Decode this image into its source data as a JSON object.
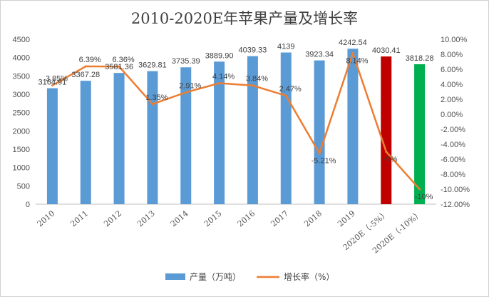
{
  "chart_data": {
    "type": "bar",
    "title": "2010-2020E年苹果产量及增长率",
    "categories": [
      "2010",
      "2011",
      "2012",
      "2013",
      "2014",
      "2015",
      "2016",
      "2017",
      "2018",
      "2019",
      "2020E（-5%）",
      "2020E（-10%）"
    ],
    "series": [
      {
        "name": "产量（万吨）",
        "type": "bar",
        "axis": "left",
        "values": [
          3164.91,
          3367.28,
          3581.36,
          3629.81,
          3735.39,
          3889.9,
          4039.33,
          4139,
          3923.34,
          4242.54,
          4030.41,
          3818.28
        ],
        "labels": [
          "3164.91",
          "3367.28",
          "3581.36",
          "3629.81",
          "3735.39",
          "3889.90",
          "4039.33",
          "4139",
          "3923.34",
          "4242.54",
          "4030.41",
          "3818.28"
        ],
        "colors": [
          "#5b9bd5",
          "#5b9bd5",
          "#5b9bd5",
          "#5b9bd5",
          "#5b9bd5",
          "#5b9bd5",
          "#5b9bd5",
          "#5b9bd5",
          "#5b9bd5",
          "#5b9bd5",
          "#c00000",
          "#00b050"
        ]
      },
      {
        "name": "增长率（%）",
        "type": "line",
        "axis": "right",
        "values": [
          3.85,
          6.39,
          6.36,
          1.35,
          2.91,
          4.14,
          3.84,
          2.47,
          -5.21,
          8.14,
          -5,
          -10
        ],
        "labels": [
          "3.85%",
          "6.39%",
          "6.36%",
          "1.35%",
          "2.91%",
          "4.14%",
          "3.84%",
          "2.47%",
          "-5.21%",
          "8.14%",
          "-5%",
          "-10%"
        ],
        "color": "#ed7d31"
      }
    ],
    "y_left": {
      "min": 0,
      "max": 4500,
      "step": 500,
      "ticks": [
        "0",
        "500",
        "1000",
        "1500",
        "2000",
        "2500",
        "3000",
        "3500",
        "4000",
        "4500"
      ]
    },
    "y_right": {
      "min": -12,
      "max": 10,
      "step": 2,
      "ticks": [
        "-12.00%",
        "-10.00%",
        "-8.00%",
        "-6.00%",
        "-4.00%",
        "-2.00%",
        "0.00%",
        "2.00%",
        "4.00%",
        "6.00%",
        "8.00%",
        "10.00%"
      ]
    },
    "legend_position": "bottom",
    "grid": false
  }
}
